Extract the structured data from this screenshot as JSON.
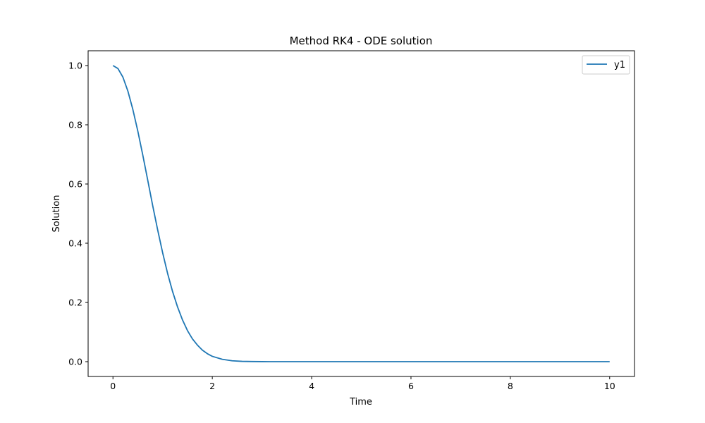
{
  "chart_data": {
    "type": "line",
    "title": "Method RK4 - ODE solution",
    "xlabel": "Time",
    "ylabel": "Solution",
    "xlim": [
      -0.5,
      10.5
    ],
    "ylim": [
      -0.05,
      1.05
    ],
    "xticks": [
      0,
      2,
      4,
      6,
      8,
      10
    ],
    "yticks": [
      0.0,
      0.2,
      0.4,
      0.6,
      0.8,
      1.0
    ],
    "xtick_labels": [
      "0",
      "2",
      "4",
      "6",
      "8",
      "10"
    ],
    "ytick_labels": [
      "0.0",
      "0.2",
      "0.4",
      "0.6",
      "0.8",
      "1.0"
    ],
    "grid": false,
    "legend_position": "top-right",
    "series": [
      {
        "name": "y1",
        "color": "#1f77b4",
        "x": [
          0,
          0.1,
          0.2,
          0.3,
          0.4,
          0.5,
          0.6,
          0.7,
          0.8,
          0.9,
          1.0,
          1.1,
          1.2,
          1.3,
          1.4,
          1.5,
          1.6,
          1.7,
          1.8,
          1.9,
          2.0,
          2.2,
          2.4,
          2.6,
          2.8,
          3.0,
          3.5,
          4.0,
          5.0,
          6.0,
          7.0,
          8.0,
          9.0,
          10.0
        ],
        "y": [
          1.0,
          0.99,
          0.961,
          0.914,
          0.852,
          0.779,
          0.698,
          0.613,
          0.527,
          0.445,
          0.368,
          0.298,
          0.237,
          0.185,
          0.141,
          0.105,
          0.077,
          0.056,
          0.039,
          0.027,
          0.018,
          0.008,
          0.003,
          0.001,
          0.0004,
          0.0001,
          0.0,
          0.0,
          0.0,
          0.0,
          0.0,
          0.0,
          0.0,
          0.0
        ]
      }
    ]
  }
}
